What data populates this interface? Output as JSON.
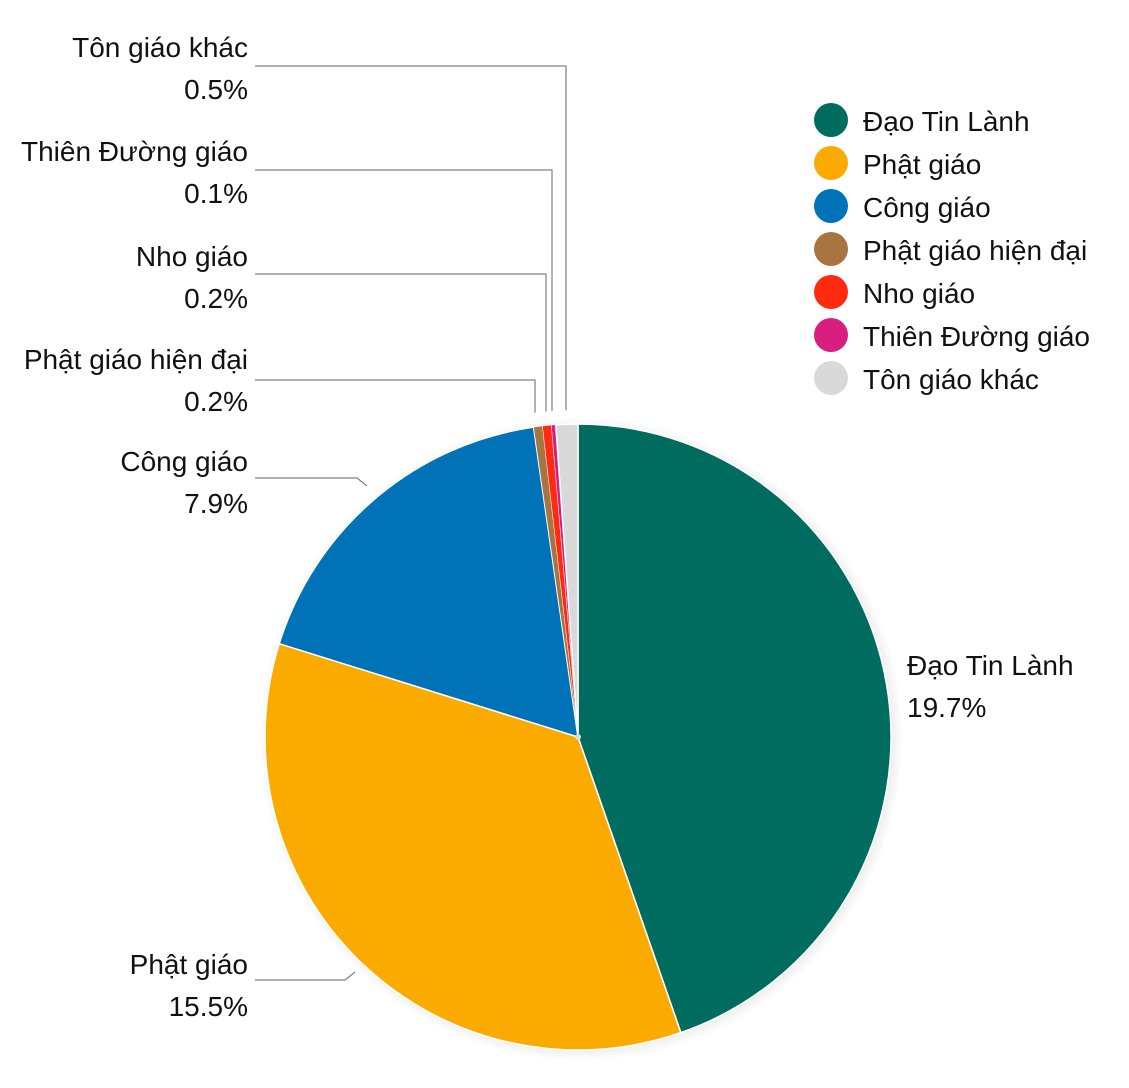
{
  "chart_data": {
    "type": "pie",
    "slices": [
      {
        "label": "Đạo Tin Lành",
        "value": 19.7,
        "value_label": "19.7%",
        "color": "#006b5f"
      },
      {
        "label": "Phật giáo",
        "value": 15.5,
        "value_label": "15.5%",
        "color": "#fbaa00"
      },
      {
        "label": "Công giáo",
        "value": 7.9,
        "value_label": "7.9%",
        "color": "#0072b8"
      },
      {
        "label": "Phật giáo hiện đại",
        "value": 0.2,
        "value_label": "0.2%",
        "color": "#a87540"
      },
      {
        "label": "Nho giáo",
        "value": 0.2,
        "value_label": "0.2%",
        "color": "#ff2a10"
      },
      {
        "label": "Thiên Đường giáo",
        "value": 0.1,
        "value_label": "0.1%",
        "color": "#d81f7f"
      },
      {
        "label": "Tôn giáo khác",
        "value": 0.5,
        "value_label": "0.5%",
        "color": "#d9d9d9"
      }
    ],
    "legend": {
      "placement": "top-right",
      "items": [
        "Đạo Tin Lành",
        "Phật giáo",
        "Công giáo",
        "Phật giáo hiện đại",
        "Nho giáo",
        "Thiên Đường giáo",
        "Tôn giáo khác"
      ]
    },
    "start_angle": "12 o'clock",
    "direction": "clockwise"
  }
}
